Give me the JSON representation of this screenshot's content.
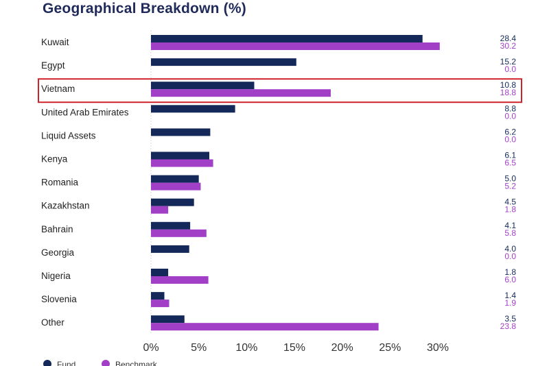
{
  "title": "Geographical Breakdown (%)",
  "chart_data": {
    "type": "bar",
    "orientation": "horizontal",
    "title": "Geographical Breakdown (%)",
    "categories": [
      "Kuwait",
      "Egypt",
      "Vietnam",
      "United Arab Emirates",
      "Liquid Assets",
      "Kenya",
      "Romania",
      "Kazakhstan",
      "Bahrain",
      "Georgia",
      "Nigeria",
      "Slovenia",
      "Other"
    ],
    "series": [
      {
        "name": "Fund",
        "color": "#14295a",
        "values": [
          28.4,
          15.2,
          10.8,
          8.8,
          6.2,
          6.1,
          5.0,
          4.5,
          4.1,
          4.0,
          1.8,
          1.4,
          3.5
        ],
        "labels": [
          "28.4",
          "15.2",
          "10.8",
          "8.8",
          "6.2",
          "6.1",
          "5.0",
          "4.5",
          "4.1",
          "4.0",
          "1.8",
          "1.4",
          "3.5"
        ]
      },
      {
        "name": "Benchmark",
        "color": "#a23fc7",
        "values": [
          30.2,
          0.0,
          18.8,
          0.0,
          0.0,
          6.5,
          5.2,
          1.8,
          5.8,
          0.0,
          6.0,
          1.9,
          23.8
        ],
        "labels": [
          "30.2",
          "0.0",
          "18.8",
          "0.0",
          "0.0",
          "6.5",
          "5.2",
          "1.8",
          "5.8",
          "0.0",
          "6.0",
          "1.9",
          "23.8"
        ]
      }
    ],
    "xlim": [
      0,
      30
    ],
    "xticks": [
      0,
      5,
      10,
      15,
      20,
      25,
      30
    ],
    "xtick_labels": [
      "0%",
      "5%",
      "10%",
      "15%",
      "20%",
      "25%",
      "30%"
    ],
    "grid": false,
    "legend": "bottom-left",
    "highlight": {
      "category": "Vietnam",
      "color": "#d0222a"
    }
  }
}
